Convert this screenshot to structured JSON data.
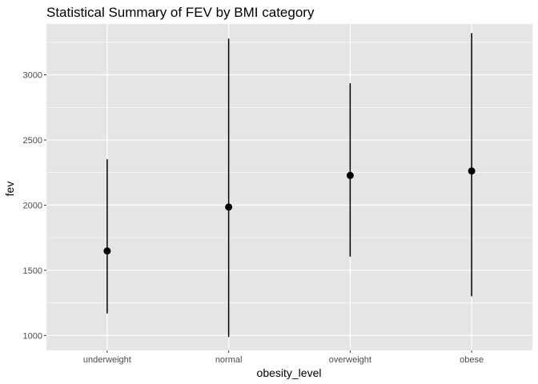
{
  "chart_data": {
    "type": "pointrange",
    "title": "Statistical Summary of FEV by BMI category",
    "xlabel": "obesity_level",
    "ylabel": "fev",
    "categories": [
      "underweight",
      "normal",
      "overweight",
      "obese"
    ],
    "mean": [
      1648,
      1985,
      2228,
      2262
    ],
    "min": [
      1168,
      988,
      1605,
      1300
    ],
    "max": [
      2352,
      3278,
      2935,
      3320
    ],
    "yticks": [
      1000,
      1500,
      2000,
      2500,
      3000
    ],
    "ylim": [
      885,
      3390
    ],
    "grid": true,
    "panel_color": "#e5e5e5",
    "grid_color": "#ffffff",
    "point_color": "#000000"
  }
}
